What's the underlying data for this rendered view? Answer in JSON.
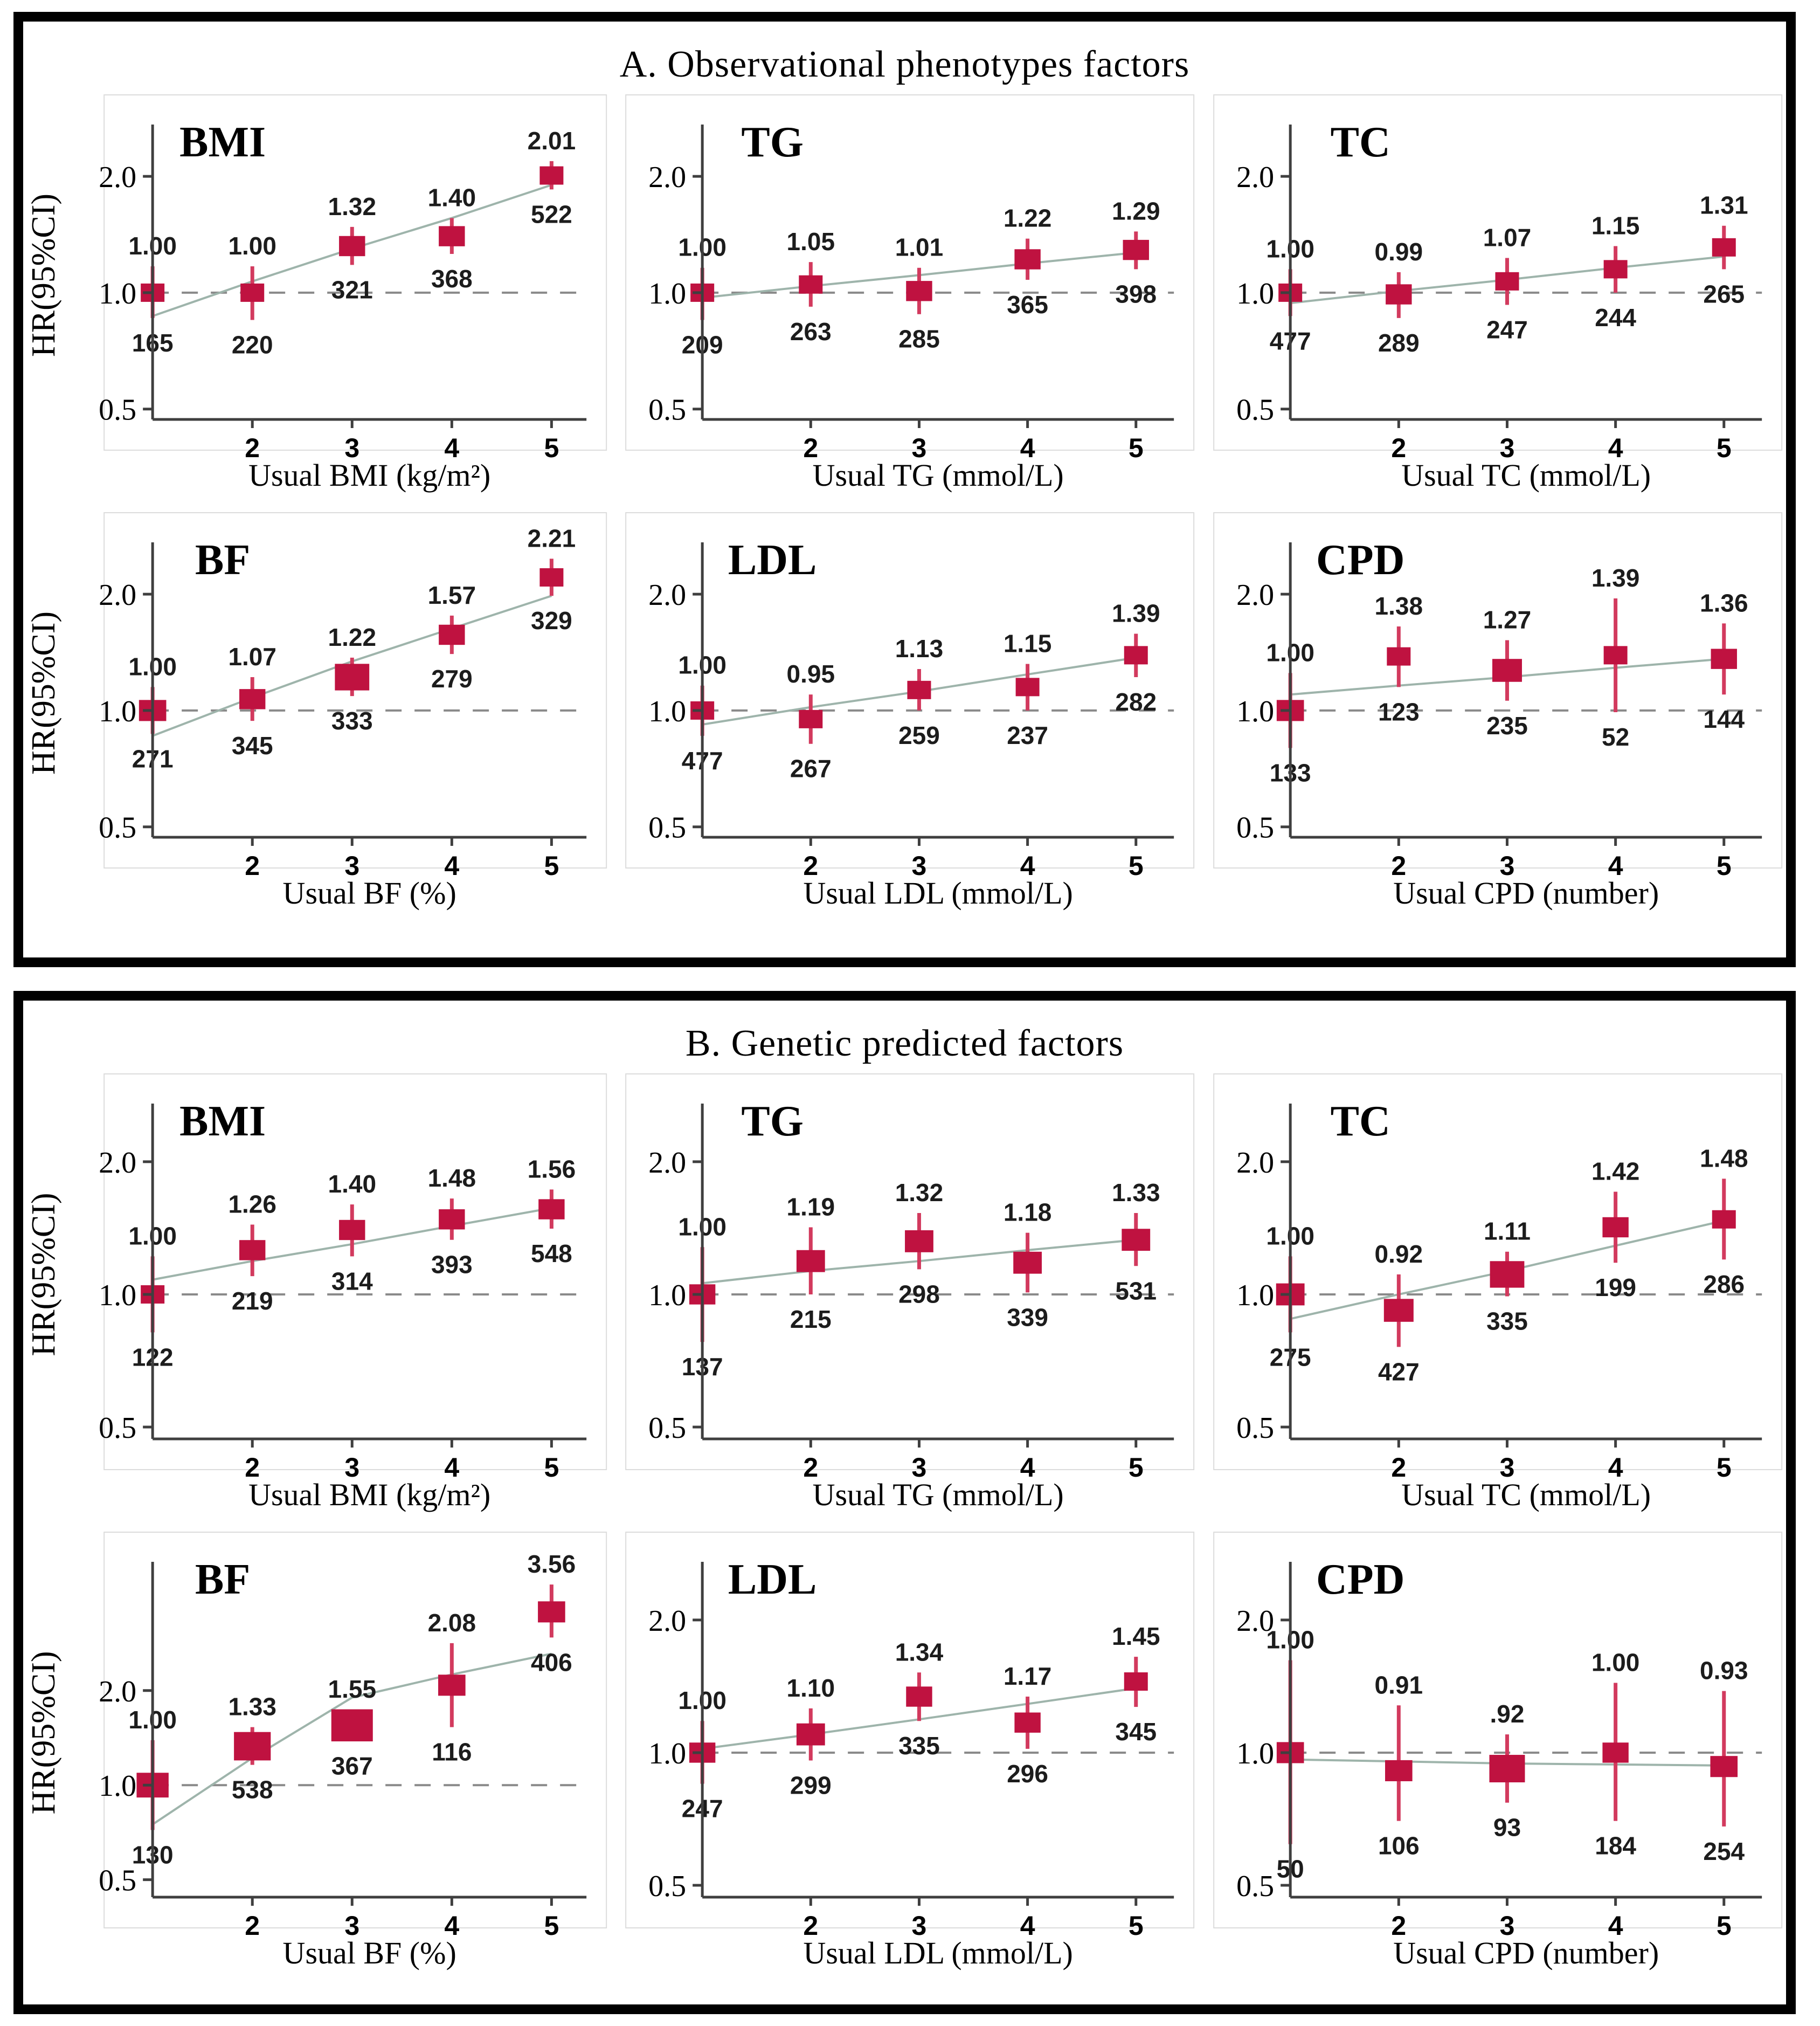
{
  "figure_title": "Hazard ratio forest panels",
  "chart_data": {
    "type": "scatter",
    "description": "Forest-style HR(95%CI) plots across quintiles 1-5 with point estimates (squares), CI whiskers, fitted trend line and dashed reference line at HR=1.0; y-axis log scale with ticks 2.0/1.0/0.5",
    "style": {
      "marker_color": "#bf1240",
      "ci_bar_color": "#d23a5e",
      "trend_color": "#9eb4ab",
      "ref_line_color": "#8a8a8a",
      "axis_color": "#3f3f3f",
      "frame_color": "#dcdcdc",
      "text_color": "#000000",
      "annot_color": "#1c1c1c"
    },
    "sections": [
      {
        "id": "A",
        "title": "A. Observational phenotypes factors",
        "ylabel": "HR(95%CI)",
        "y_tick_labels": [
          "2.0",
          "1.0",
          "0.5"
        ],
        "y_tick_values": [
          2.0,
          1.0,
          0.5
        ],
        "ref_value": 1.0,
        "panels": [
          {
            "label": "BMI",
            "xlabel": "Usual BMI (kg/m²)",
            "x": [
              1,
              2,
              3,
              4,
              5
            ],
            "x_tick_labels": [
              "2",
              "3",
              "4",
              "5"
            ],
            "hr_labels": [
              "1.00",
              "1.00",
              "1.32",
              "1.40",
              "2.01"
            ],
            "hr_values": [
              1.0,
              1.0,
              1.32,
              1.4,
              2.01
            ],
            "ci_lo": [
              0.86,
              0.85,
              1.18,
              1.26,
              1.85
            ],
            "ci_hi": [
              1.17,
              1.17,
              1.48,
              1.56,
              2.19
            ],
            "counts": [
              "165",
              "220",
              "321",
              "368",
              "522"
            ],
            "sizes": [
              1,
              1,
              1.1,
              1.1,
              1
            ],
            "trend": [
              0.87,
              1.07,
              1.3,
              1.56,
              1.9
            ]
          },
          {
            "label": "TG",
            "xlabel": "Usual TG (mmol/L)",
            "x": [
              1,
              2,
              3,
              4,
              5
            ],
            "x_tick_labels": [
              "2",
              "3",
              "4",
              "5"
            ],
            "hr_labels": [
              "1.00",
              "1.05",
              "1.01",
              "1.22",
              "1.29"
            ],
            "hr_values": [
              1.0,
              1.05,
              1.01,
              1.22,
              1.29
            ],
            "ci_lo": [
              0.85,
              0.92,
              0.88,
              1.08,
              1.15
            ],
            "ci_hi": [
              1.16,
              1.2,
              1.16,
              1.38,
              1.44
            ],
            "counts": [
              "209",
              "263",
              "285",
              "365",
              "398"
            ],
            "sizes": [
              1,
              1,
              1.1,
              1.1,
              1.1
            ],
            "trend": [
              0.97,
              1.04,
              1.11,
              1.19,
              1.27
            ]
          },
          {
            "label": "TC",
            "xlabel": "Usual TC (mmol/L)",
            "x": [
              1,
              2,
              3,
              4,
              5
            ],
            "x_tick_labels": [
              "2",
              "3",
              "4",
              "5"
            ],
            "hr_labels": [
              "1.00",
              "0.99",
              "1.07",
              "1.15",
              "1.31"
            ],
            "hr_values": [
              1.0,
              0.99,
              1.07,
              1.15,
              1.31
            ],
            "ci_lo": [
              0.87,
              0.86,
              0.93,
              1.0,
              1.15
            ],
            "ci_hi": [
              1.15,
              1.13,
              1.23,
              1.32,
              1.49
            ],
            "counts": [
              "477",
              "289",
              "247",
              "244",
              "265"
            ],
            "sizes": [
              1,
              1.1,
              1,
              1,
              1
            ],
            "trend": [
              0.94,
              1.01,
              1.08,
              1.16,
              1.24
            ]
          },
          {
            "label": "BF",
            "xlabel": "Usual BF (%)",
            "x": [
              1,
              2,
              3,
              4,
              5
            ],
            "x_tick_labels": [
              "2",
              "3",
              "4",
              "5"
            ],
            "hr_labels": [
              "1.00",
              "1.07",
              "1.22",
              "1.57",
              "2.21"
            ],
            "hr_values": [
              1.0,
              1.07,
              1.22,
              1.57,
              2.21
            ],
            "ci_lo": [
              0.87,
              0.94,
              1.09,
              1.4,
              1.98
            ],
            "ci_hi": [
              1.15,
              1.22,
              1.37,
              1.76,
              2.47
            ],
            "counts": [
              "271",
              "345",
              "333",
              "279",
              "329"
            ],
            "sizes": [
              1.15,
              1.1,
              1.45,
              1.1,
              1
            ],
            "trend": [
              0.86,
              1.08,
              1.34,
              1.63,
              1.98
            ]
          },
          {
            "label": "LDL",
            "xlabel": "Usual LDL (mmol/L)",
            "x": [
              1,
              2,
              3,
              4,
              5
            ],
            "x_tick_labels": [
              "2",
              "3",
              "4",
              "5"
            ],
            "hr_labels": [
              "1.00",
              "0.95",
              "1.13",
              "1.15",
              "1.39"
            ],
            "hr_values": [
              1.0,
              0.95,
              1.13,
              1.15,
              1.39
            ],
            "ci_lo": [
              0.86,
              0.82,
              1.0,
              1.0,
              1.22
            ],
            "ci_hi": [
              1.16,
              1.1,
              1.28,
              1.32,
              1.58
            ],
            "counts": [
              "477",
              "267",
              "259",
              "237",
              "282"
            ],
            "sizes": [
              1,
              1,
              1,
              1,
              1
            ],
            "trend": [
              0.92,
              1.02,
              1.12,
              1.24,
              1.37
            ]
          },
          {
            "label": "CPD",
            "xlabel": "Usual CPD (number)",
            "x": [
              1,
              2,
              3,
              4,
              5
            ],
            "x_tick_labels": [
              "2",
              "3",
              "4",
              "5"
            ],
            "hr_labels": [
              "1.00",
              "1.38",
              "1.27",
              "1.39",
              "1.36"
            ],
            "hr_values": [
              1.0,
              1.38,
              1.27,
              1.39,
              1.36
            ],
            "ci_lo": [
              0.8,
              1.15,
              1.06,
              0.99,
              1.1
            ],
            "ci_hi": [
              1.25,
              1.65,
              1.52,
              1.95,
              1.68
            ],
            "counts": [
              "133",
              "123",
              "235",
              "52",
              "144"
            ],
            "sizes": [
              1.15,
              1,
              1.25,
              1,
              1.1
            ],
            "trend": [
              1.1,
              1.16,
              1.22,
              1.29,
              1.36
            ]
          }
        ]
      },
      {
        "id": "B",
        "title": "B. Genetic predicted factors",
        "ylabel": "HR(95%CI)",
        "y_tick_labels": [
          "2.0",
          "1.0",
          "0.5"
        ],
        "y_tick_values": [
          2.0,
          1.0,
          0.5
        ],
        "ref_value": 1.0,
        "panels": [
          {
            "label": "BMI",
            "xlabel": "Usual BMI (kg/m²)",
            "x": [
              1,
              2,
              3,
              4,
              5
            ],
            "x_tick_labels": [
              "2",
              "3",
              "4",
              "5"
            ],
            "hr_labels": [
              "1.00",
              "1.26",
              "1.40",
              "1.48",
              "1.56"
            ],
            "hr_values": [
              1.0,
              1.26,
              1.4,
              1.48,
              1.56
            ],
            "ci_lo": [
              0.82,
              1.1,
              1.22,
              1.33,
              1.41
            ],
            "ci_hi": [
              1.22,
              1.44,
              1.6,
              1.65,
              1.73
            ],
            "counts": [
              "122",
              "219",
              "314",
              "393",
              "548"
            ],
            "sizes": [
              1,
              1.1,
              1.1,
              1.1,
              1.1
            ],
            "trend": [
              1.08,
              1.19,
              1.3,
              1.43,
              1.57
            ]
          },
          {
            "label": "TG",
            "xlabel": "Usual TG (mmol/L)",
            "x": [
              1,
              2,
              3,
              4,
              5
            ],
            "x_tick_labels": [
              "2",
              "3",
              "4",
              "5"
            ],
            "hr_labels": [
              "1.00",
              "1.19",
              "1.32",
              "1.18",
              "1.33"
            ],
            "hr_values": [
              1.0,
              1.19,
              1.32,
              1.18,
              1.33
            ],
            "ci_lo": [
              0.78,
              1.0,
              1.14,
              1.01,
              1.16
            ],
            "ci_hi": [
              1.28,
              1.42,
              1.53,
              1.38,
              1.53
            ],
            "counts": [
              "137",
              "215",
              "298",
              "339",
              "531"
            ],
            "sizes": [
              1.1,
              1.2,
              1.2,
              1.2,
              1.2
            ],
            "trend": [
              1.06,
              1.13,
              1.19,
              1.26,
              1.33
            ]
          },
          {
            "label": "TC",
            "xlabel": "Usual TC (mmol/L)",
            "x": [
              1,
              2,
              3,
              4,
              5
            ],
            "x_tick_labels": [
              "2",
              "3",
              "4",
              "5"
            ],
            "hr_labels": [
              "1.00",
              "0.92",
              "1.11",
              "1.42",
              "1.48"
            ],
            "hr_values": [
              1.0,
              0.92,
              1.11,
              1.42,
              1.48
            ],
            "ci_lo": [
              0.82,
              0.76,
              0.99,
              1.18,
              1.2
            ],
            "ci_hi": [
              1.22,
              1.11,
              1.25,
              1.71,
              1.83
            ],
            "counts": [
              "275",
              "427",
              "335",
              "199",
              "286"
            ],
            "sizes": [
              1.2,
              1.25,
              1.45,
              1.1,
              1
            ],
            "trend": [
              0.88,
              1.0,
              1.13,
              1.29,
              1.47
            ]
          },
          {
            "label": "BF",
            "xlabel": "Usual BF (%)",
            "x": [
              1,
              2,
              3,
              4,
              5
            ],
            "x_tick_labels": [
              "2",
              "3",
              "4",
              "5"
            ],
            "hr_labels": [
              "1.00",
              "1.33",
              "1.55",
              "2.08",
              "3.56"
            ],
            "hr_values": [
              1.0,
              1.33,
              1.55,
              2.08,
              3.56
            ],
            "ci_lo": [
              0.72,
              1.16,
              1.38,
              1.53,
              2.95
            ],
            "ci_hi": [
              1.39,
              1.53,
              1.74,
              2.83,
              4.35
            ],
            "counts": [
              "130",
              "538",
              "367",
              "116",
              "406"
            ],
            "sizes": [
              1.35,
              1.55,
              1.75,
              1.15,
              1.15
            ],
            "trend": [
              0.75,
              1.22,
              1.9,
              2.25,
              2.62
            ],
            "ylim": [
              0.44,
              4.9
            ]
          },
          {
            "label": "LDL",
            "xlabel": "Usual LDL (mmol/L)",
            "x": [
              1,
              2,
              3,
              4,
              5
            ],
            "x_tick_labels": [
              "2",
              "3",
              "4",
              "5"
            ],
            "hr_labels": [
              "1.00",
              "1.10",
              "1.34",
              "1.17",
              "1.45"
            ],
            "hr_values": [
              1.0,
              1.1,
              1.34,
              1.17,
              1.45
            ],
            "ci_lo": [
              0.85,
              0.96,
              1.18,
              1.02,
              1.27
            ],
            "ci_hi": [
              1.18,
              1.26,
              1.52,
              1.34,
              1.65
            ],
            "counts": [
              "247",
              "299",
              "335",
              "296",
              "345"
            ],
            "sizes": [
              1.1,
              1.2,
              1.1,
              1.1,
              1
            ],
            "trend": [
              1.02,
              1.1,
              1.19,
              1.29,
              1.4
            ]
          },
          {
            "label": "CPD",
            "xlabel": "Usual CPD (number)",
            "x": [
              1,
              2,
              3,
              4,
              5
            ],
            "x_tick_labels": [
              "2",
              "3",
              "4",
              "5"
            ],
            "hr_labels": [
              "1.00",
              "0.91",
              ".92",
              "1.00",
              "0.93"
            ],
            "hr_values": [
              1.0,
              0.91,
              0.92,
              1.0,
              0.93
            ],
            "ci_lo": [
              0.62,
              0.7,
              0.77,
              0.7,
              0.68
            ],
            "ci_hi": [
              1.62,
              1.28,
              1.1,
              1.44,
              1.38
            ],
            "counts": [
              "50",
              "106",
              "93",
              "184",
              "254"
            ],
            "sizes": [
              1.15,
              1.15,
              1.5,
              1.1,
              1.15
            ],
            "trend": [
              0.965,
              0.955,
              0.945,
              0.94,
              0.935
            ]
          }
        ]
      }
    ]
  }
}
